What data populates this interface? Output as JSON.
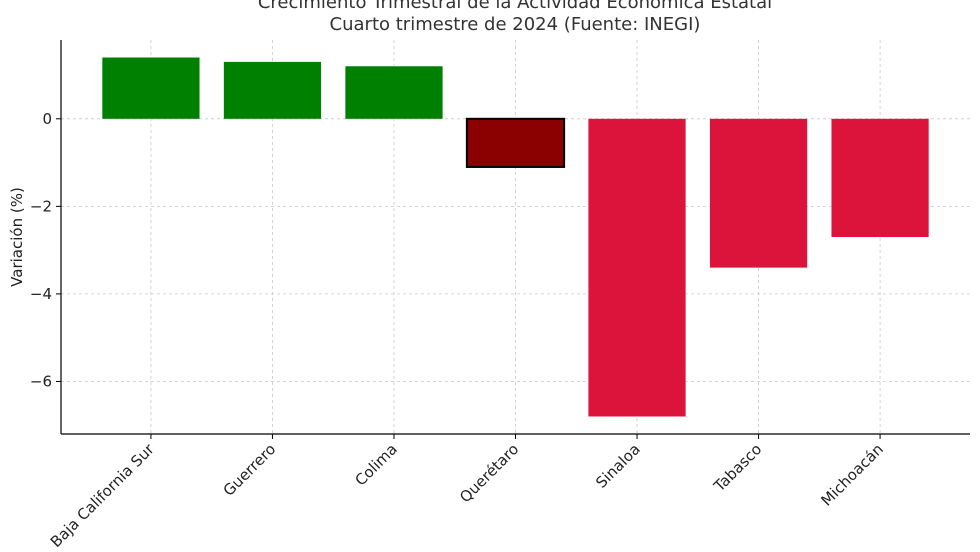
{
  "chart_data": {
    "type": "bar",
    "title": [
      "Crecimiento Trimestral de la Actividad Económica Estatal",
      "Cuarto trimestre de 2024 (Fuente: INEGI)"
    ],
    "xlabel": "",
    "ylabel": "Variación (%)",
    "categories": [
      "Baja California Sur",
      "Guerrero",
      "Colima",
      "Querétaro",
      "Sinaloa",
      "Tabasco",
      "Michoacán"
    ],
    "values": [
      1.4,
      1.3,
      1.2,
      -1.1,
      -6.8,
      -3.4,
      -2.7
    ],
    "colors": [
      "#008000",
      "#008000",
      "#008000",
      "#8b0000",
      "#dc143c",
      "#dc143c",
      "#dc143c"
    ],
    "highlighted": "Querétaro",
    "ylim": [
      -7.2,
      1.8
    ],
    "yticks": [
      0,
      -2,
      -4,
      -6
    ],
    "ytick_labels": [
      "0",
      "−2",
      "−4",
      "−6"
    ],
    "grid": true
  }
}
